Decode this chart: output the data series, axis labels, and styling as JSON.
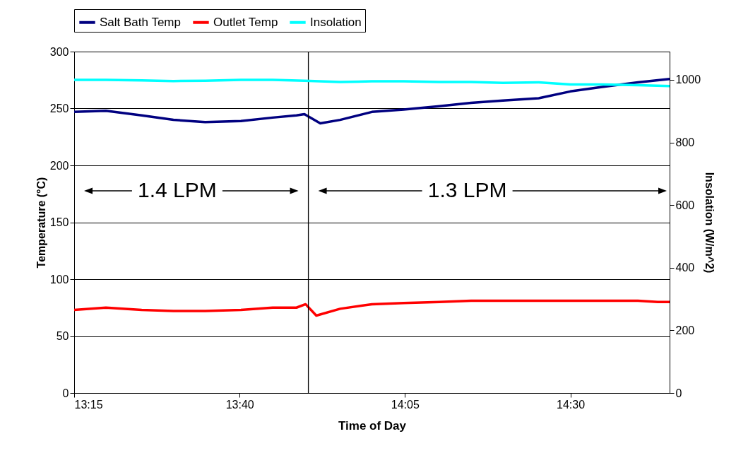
{
  "chart_data": {
    "type": "line",
    "xlabel": "Time of Day",
    "ylabel": "Temperature (°C)",
    "y2label": "Insolation (W/m^2)",
    "xlim": [
      13.25,
      14.75
    ],
    "xticks": [
      {
        "value": 13.25,
        "label": "13:15"
      },
      {
        "value": 13.6667,
        "label": "13:40"
      },
      {
        "value": 14.0833,
        "label": "14:05"
      },
      {
        "value": 14.5,
        "label": "14:30"
      }
    ],
    "ylim": [
      0,
      300
    ],
    "yticks": [
      0,
      50,
      100,
      150,
      200,
      250,
      300
    ],
    "y2lim": [
      0,
      1090
    ],
    "y2ticks": [
      0,
      200,
      400,
      600,
      800,
      1000
    ],
    "grid": "y",
    "legend": "top",
    "line_style": "solid",
    "series": [
      {
        "name": "Salt Bath Temp",
        "color": "#000080",
        "x": [
          13.25,
          13.33,
          13.42,
          13.5,
          13.58,
          13.67,
          13.75,
          13.81,
          13.83,
          13.87,
          13.92,
          14.0,
          14.08,
          14.17,
          14.25,
          14.33,
          14.42,
          14.5,
          14.58,
          14.67,
          14.75
        ],
        "values": [
          247,
          248,
          244,
          240,
          238,
          239,
          242,
          244,
          245,
          237,
          240,
          247,
          249,
          252,
          255,
          257,
          259,
          265,
          269,
          273,
          276
        ]
      },
      {
        "name": "Outlet Temp",
        "color": "#ff0000",
        "x": [
          13.25,
          13.33,
          13.42,
          13.5,
          13.58,
          13.67,
          13.75,
          13.81,
          13.833,
          13.86,
          13.92,
          14.0,
          14.08,
          14.17,
          14.25,
          14.33,
          14.5,
          14.67,
          14.72,
          14.75
        ],
        "values": [
          73,
          75,
          73,
          72,
          72,
          73,
          75,
          75,
          78,
          68,
          74,
          78,
          79,
          80,
          81,
          81,
          81,
          81,
          80,
          80
        ]
      },
      {
        "name": "Insolation",
        "color": "#00ffff",
        "axis": "y2",
        "x": [
          13.25,
          13.33,
          13.42,
          13.5,
          13.58,
          13.67,
          13.75,
          13.83,
          13.92,
          14.0,
          14.08,
          14.17,
          14.25,
          14.33,
          14.42,
          14.5,
          14.58,
          14.67,
          14.75
        ],
        "values": [
          1000,
          1000,
          998,
          996,
          997,
          1000,
          1000,
          997,
          993,
          995,
          995,
          993,
          993,
          990,
          992,
          985,
          985,
          983,
          980
        ]
      }
    ],
    "ref_lines": [
      {
        "axis": "x",
        "value": 13.84,
        "color": "#000000"
      }
    ],
    "annotations": [
      "1.4 LPM",
      "1.3 LPM"
    ]
  }
}
